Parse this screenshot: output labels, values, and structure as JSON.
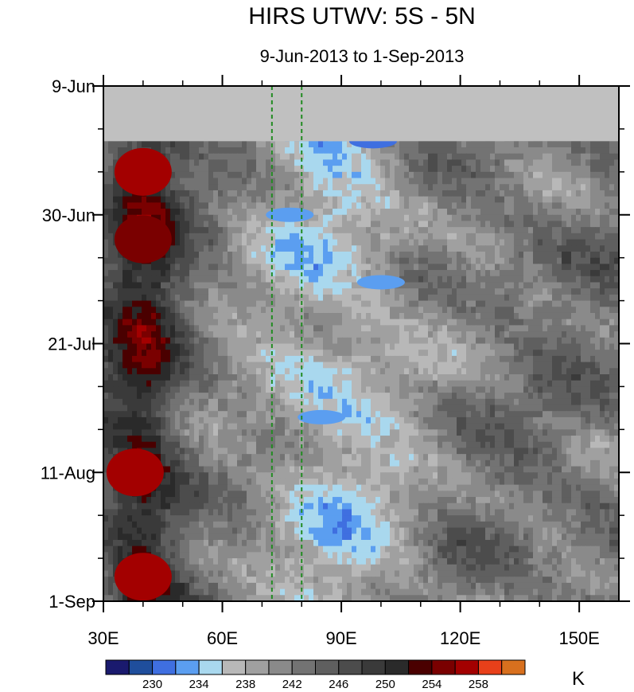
{
  "chart_data": {
    "type": "heatmap",
    "title": "HIRS UTWV: 5S - 5N",
    "subtitle": "9-Jun-2013 to 1-Sep-2013",
    "xlabel": "",
    "ylabel": "",
    "x_range": [
      30,
      160
    ],
    "x_ticks": [
      {
        "value": 30,
        "label": "30E"
      },
      {
        "value": 60,
        "label": "60E"
      },
      {
        "value": 90,
        "label": "90E"
      },
      {
        "value": 120,
        "label": "120E"
      },
      {
        "value": 150,
        "label": "150E"
      }
    ],
    "y_range": [
      "2013-06-09",
      "2013-09-01"
    ],
    "y_ticks": [
      {
        "date": "2013-06-09",
        "label": "9-Jun"
      },
      {
        "date": "2013-06-30",
        "label": "30-Jun"
      },
      {
        "date": "2013-07-21",
        "label": "21-Jul"
      },
      {
        "date": "2013-08-11",
        "label": "11-Aug"
      },
      {
        "date": "2013-09-01",
        "label": "1-Sep"
      }
    ],
    "missing_period": [
      "2013-06-09",
      "2013-06-18"
    ],
    "missing_color": "#c0c0c0",
    "reference_lines": [
      72.5,
      80
    ],
    "reference_line_color": "#228b22",
    "colorbar": {
      "unit": "K",
      "levels": [
        228,
        230,
        232,
        234,
        236,
        238,
        240,
        242,
        244,
        246,
        248,
        250,
        252,
        254,
        256,
        258,
        260
      ],
      "tick_labels": [
        "230",
        "234",
        "238",
        "242",
        "246",
        "250",
        "254",
        "258"
      ],
      "colors": [
        "#1a1a6e",
        "#1f4e9c",
        "#3f6fe0",
        "#5b9ef0",
        "#a9d8ee",
        "#b8b8b8",
        "#a0a0a0",
        "#8a8a8a",
        "#737373",
        "#5f5f5f",
        "#4c4c4c",
        "#3a3a3a",
        "#2a2a2a",
        "#4a0000",
        "#7a0000",
        "#a30000",
        "#e8401a",
        "#d8701e"
      ]
    },
    "features": [
      {
        "date": "2013-06-23",
        "lon": 40,
        "value": 256
      },
      {
        "date": "2013-07-04",
        "lon": 40,
        "value": 255
      },
      {
        "date": "2013-08-11",
        "lon": 38,
        "value": 256
      },
      {
        "date": "2013-08-28",
        "lon": 40,
        "value": 256
      },
      {
        "date": "2013-06-30",
        "lon": 77,
        "value": 232
      },
      {
        "date": "2013-07-11",
        "lon": 100,
        "value": 232
      },
      {
        "date": "2013-08-02",
        "lon": 85,
        "value": 233
      },
      {
        "date": "2013-06-18",
        "lon": 98,
        "value": 230
      }
    ]
  }
}
